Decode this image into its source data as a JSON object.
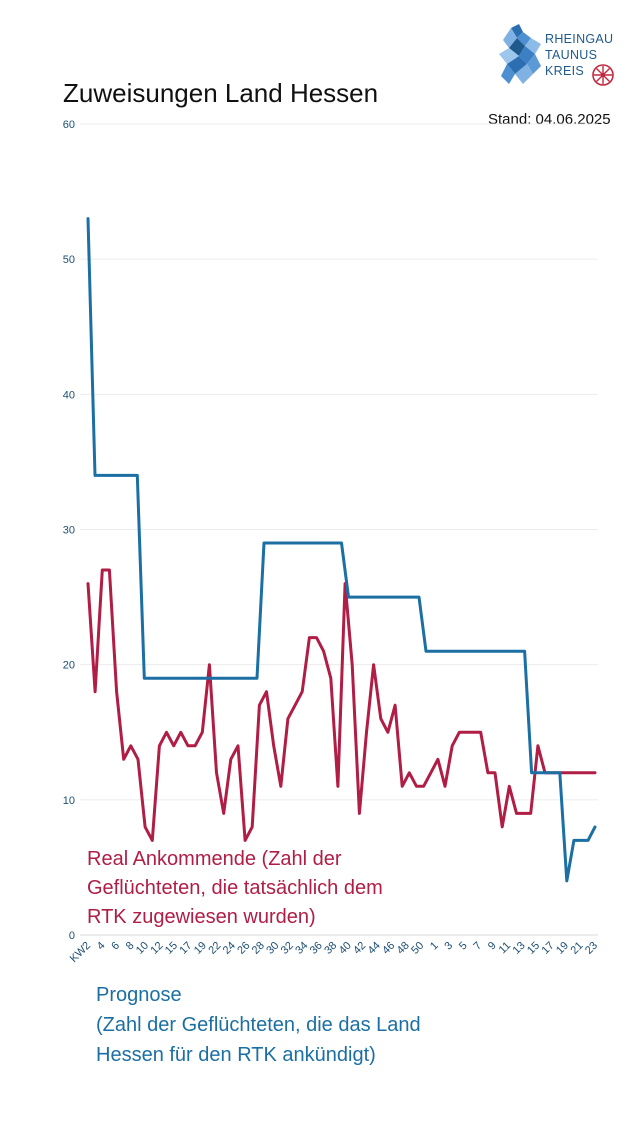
{
  "header": {
    "title": "Zuweisungen Land Hessen",
    "stand": "Stand: 04.06.2025"
  },
  "logo": {
    "lines": [
      "RHEINGAU",
      "TAUNUS",
      "KREIS"
    ]
  },
  "legend": {
    "real": [
      "Real Ankommende (Zahl der",
      "Geflüchteten, die tatsächlich dem",
      "RTK zugewiesen wurden)"
    ],
    "prognose": [
      "Prognose",
      "(Zahl der Geflüchteten, die das Land",
      "Hessen für den RTK ankündigt)"
    ]
  },
  "chart_data": {
    "type": "line",
    "ylim": [
      0,
      60
    ],
    "yticks": [
      0,
      10,
      20,
      30,
      40,
      50,
      60
    ],
    "grid": true,
    "x_tick_labels": [
      "KW2",
      "4",
      "6",
      "8",
      "10",
      "12",
      "15",
      "17",
      "19",
      "22",
      "24",
      "26",
      "28",
      "30",
      "32",
      "34",
      "36",
      "38",
      "40",
      "42",
      "44",
      "46",
      "48",
      "50",
      "1",
      "3",
      "5",
      "7",
      "9",
      "11",
      "13",
      "15",
      "17",
      "19",
      "21",
      "23"
    ],
    "colors": {
      "real": "#b01d45",
      "prognose": "#1b6fa3"
    },
    "series": [
      {
        "name": "Real Ankommende",
        "values": [
          26,
          18,
          27,
          27,
          18,
          13,
          14,
          13,
          8,
          7,
          14,
          15,
          14,
          15,
          14,
          14,
          15,
          20,
          12,
          9,
          13,
          14,
          7,
          8,
          17,
          18,
          14,
          11,
          16,
          17,
          18,
          22,
          22,
          21,
          19,
          11,
          26,
          20,
          9,
          15,
          20,
          16,
          15,
          17,
          11,
          12,
          11,
          11,
          12,
          13,
          11,
          14,
          15,
          15,
          15,
          15,
          12,
          12,
          8,
          11,
          9,
          9,
          9,
          14,
          12,
          12,
          12,
          12,
          12,
          12,
          12,
          12
        ]
      },
      {
        "name": "Prognose",
        "values": [
          53,
          34,
          34,
          34,
          34,
          34,
          34,
          34,
          19,
          19,
          19,
          19,
          19,
          19,
          19,
          19,
          19,
          19,
          19,
          19,
          19,
          19,
          19,
          19,
          19,
          29,
          29,
          29,
          29,
          29,
          29,
          29,
          29,
          29,
          29,
          29,
          29,
          25,
          25,
          25,
          25,
          25,
          25,
          25,
          25,
          25,
          25,
          25,
          21,
          21,
          21,
          21,
          21,
          21,
          21,
          21,
          21,
          21,
          21,
          21,
          21,
          21,
          21,
          12,
          12,
          12,
          12,
          12,
          4,
          7,
          7,
          7,
          8
        ]
      }
    ]
  }
}
